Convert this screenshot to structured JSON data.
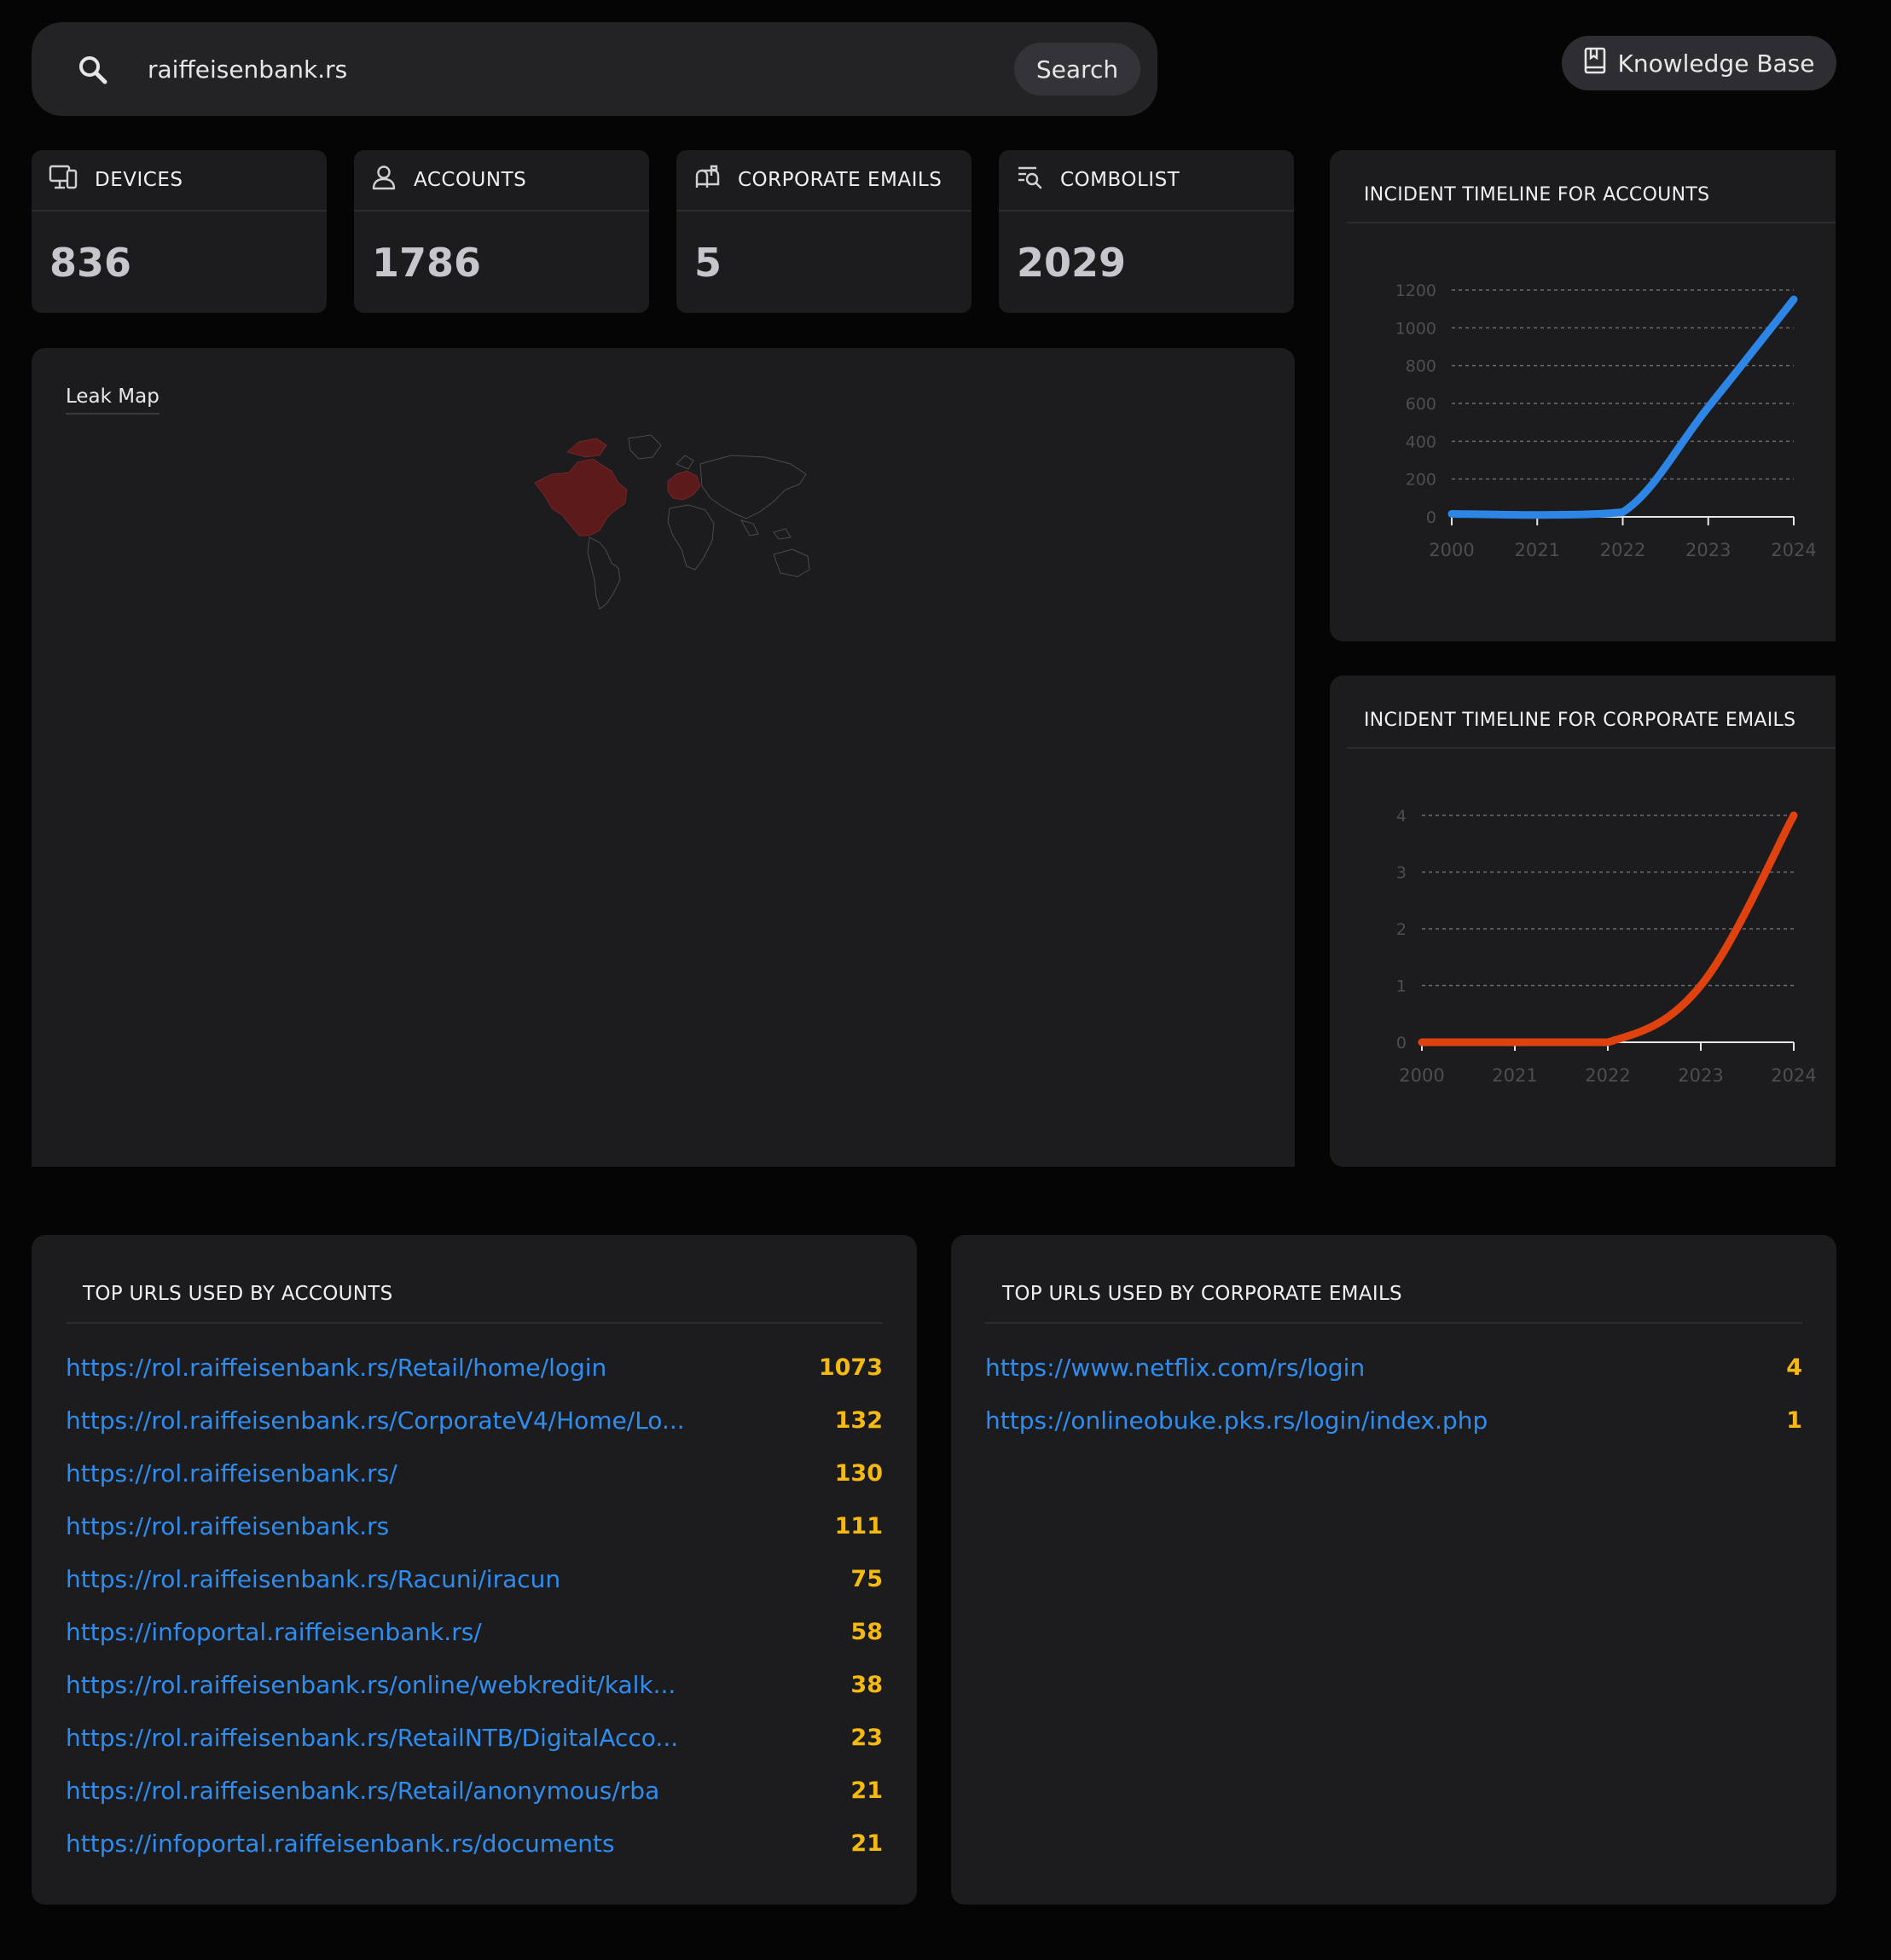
{
  "search": {
    "value": "raiffeisenbank.rs",
    "button_label": "Search",
    "icon": "search-icon"
  },
  "knowledge_base": {
    "label": "Knowledge Base",
    "icon": "book-bookmark-icon"
  },
  "stats": [
    {
      "label": "DEVICES",
      "value": "836",
      "icon": "monitor-icon"
    },
    {
      "label": "ACCOUNTS",
      "value": "1786",
      "icon": "user-icon"
    },
    {
      "label": "CORPORATE EMAILS",
      "value": "5",
      "icon": "mailbox-icon"
    },
    {
      "label": "COMBOLIST",
      "value": "2029",
      "icon": "list-search-icon"
    }
  ],
  "leak_map": {
    "title": "Leak Map",
    "highlight_color": "#5c1a1a"
  },
  "chart_data": [
    {
      "type": "line",
      "title": "INCIDENT TIMELINE FOR ACCOUNTS",
      "x": [
        "2000",
        "2021",
        "2022",
        "2023",
        "2024"
      ],
      "series": [
        {
          "values": [
            16,
            10,
            25,
            580,
            1150
          ],
          "color": "#2d86e6"
        }
      ],
      "yticks": [
        0,
        200,
        400,
        600,
        800,
        1000,
        1200
      ],
      "ylim": [
        0,
        1200
      ],
      "grid": true
    },
    {
      "type": "line",
      "title": "INCIDENT TIMELINE FOR CORPORATE EMAILS",
      "x": [
        "2000",
        "2021",
        "2022",
        "2023",
        "2024"
      ],
      "series": [
        {
          "values": [
            0,
            0,
            0,
            1,
            4
          ],
          "color": "#e0420f"
        }
      ],
      "yticks": [
        0,
        1,
        2,
        3,
        4
      ],
      "ylim": [
        0,
        4
      ],
      "grid": true
    }
  ],
  "top_urls_accounts": {
    "title": "TOP URLS USED BY ACCOUNTS",
    "rows": [
      {
        "url": "https://rol.raiffeisenbank.rs/Retail/home/login",
        "count": "1073"
      },
      {
        "url": "https://rol.raiffeisenbank.rs/CorporateV4/Home/Lo...",
        "count": "132"
      },
      {
        "url": "https://rol.raiffeisenbank.rs/",
        "count": "130"
      },
      {
        "url": "https://rol.raiffeisenbank.rs",
        "count": "111"
      },
      {
        "url": "https://rol.raiffeisenbank.rs/Racuni/iracun",
        "count": "75"
      },
      {
        "url": "https://infoportal.raiffeisenbank.rs/",
        "count": "58"
      },
      {
        "url": "https://rol.raiffeisenbank.rs/online/webkredit/kalk...",
        "count": "38"
      },
      {
        "url": "https://rol.raiffeisenbank.rs/RetailNTB/DigitalAcco...",
        "count": "23"
      },
      {
        "url": "https://rol.raiffeisenbank.rs/Retail/anonymous/rba",
        "count": "21"
      },
      {
        "url": "https://infoportal.raiffeisenbank.rs/documents",
        "count": "21"
      }
    ]
  },
  "top_urls_emails": {
    "title": "TOP URLS USED BY CORPORATE EMAILS",
    "rows": [
      {
        "url": "https://www.netflix.com/rs/login",
        "count": "4"
      },
      {
        "url": "https://onlineobuke.pks.rs/login/index.php",
        "count": "1"
      }
    ]
  }
}
